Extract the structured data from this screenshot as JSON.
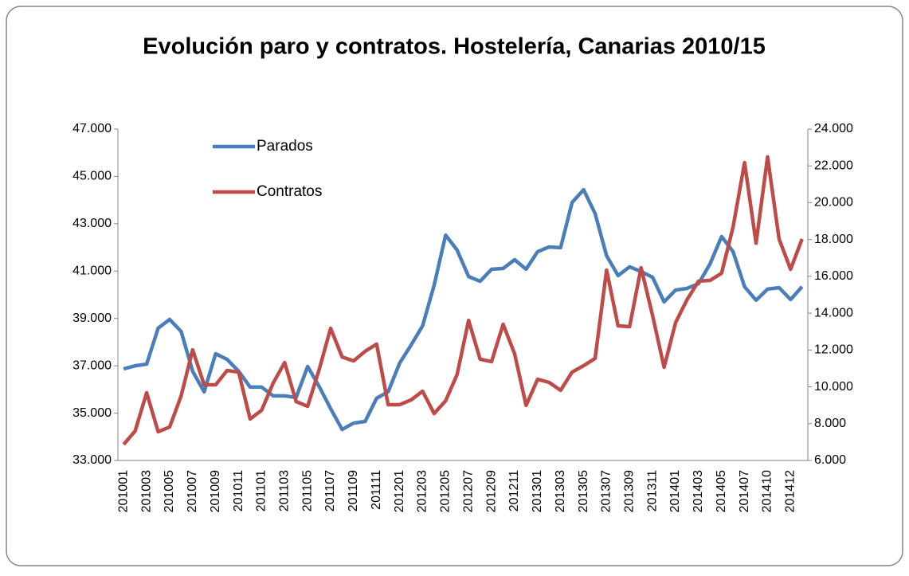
{
  "chart_data": {
    "type": "line",
    "title": "Evolución paro y contratos. Hostelería, Canarias 2010/15",
    "categories": [
      "201001",
      null,
      "201003",
      null,
      "201005",
      null,
      "201007",
      null,
      "201009",
      null,
      "201011",
      null,
      "201101",
      null,
      "201103",
      null,
      "201105",
      null,
      "201107",
      null,
      "201109",
      null,
      "201111",
      null,
      "201201",
      null,
      "201203",
      null,
      "201205",
      null,
      "201207",
      null,
      "201209",
      null,
      "201211",
      null,
      "201301",
      null,
      "201303",
      null,
      "201305",
      null,
      "201307",
      null,
      "201309",
      null,
      "201311",
      null,
      "201401",
      null,
      "201403",
      null,
      "201405",
      null,
      "201407",
      null,
      "201410",
      null,
      "201412",
      null
    ],
    "series": [
      {
        "name": "Parados",
        "color": "#4a7ebb",
        "values": [
          36870,
          37000,
          37070,
          38590,
          38960,
          38450,
          36770,
          35900,
          37510,
          37270,
          36770,
          36100,
          36100,
          35730,
          35730,
          35660,
          36970,
          36130,
          35190,
          34310,
          34580,
          34650,
          35630,
          35900,
          37110,
          37880,
          38690,
          40400,
          42520,
          41890,
          40770,
          40570,
          41080,
          41110,
          41480,
          41080,
          41820,
          42020,
          41990,
          43900,
          44440,
          43430,
          41650,
          40810,
          41180,
          40980,
          40740,
          39700,
          40200,
          40270,
          40470,
          41310,
          42460,
          41820,
          40340,
          39770,
          40240,
          40300,
          39800,
          40340
        ]
      },
      {
        "name": "Contratos",
        "color": "#be4b48",
        "axis": "y2",
        "values": [
          6870,
          7600,
          9680,
          7560,
          7820,
          9510,
          12010,
          10110,
          10110,
          10890,
          10800,
          8250,
          8730,
          10200,
          11320,
          9200,
          8940,
          10930,
          13180,
          11620,
          11410,
          11930,
          12320,
          9030,
          9030,
          9290,
          9760,
          8550,
          9240,
          10670,
          13610,
          11500,
          11370,
          13400,
          11800,
          8990,
          10410,
          10240,
          9810,
          10800,
          11150,
          11540,
          16340,
          13310,
          13270,
          16470,
          13870,
          11060,
          13490,
          14740,
          15740,
          15780,
          16170,
          18680,
          22180,
          17800,
          22490,
          18030,
          16380,
          18030
        ]
      }
    ],
    "ylim": [
      33000,
      47000
    ],
    "yticks": [
      {
        "value": 33000,
        "label": "33.000"
      },
      {
        "value": 35000,
        "label": "35.000"
      },
      {
        "value": 37000,
        "label": "37.000"
      },
      {
        "value": 39000,
        "label": "39.000"
      },
      {
        "value": 41000,
        "label": "41.000"
      },
      {
        "value": 43000,
        "label": "43.000"
      },
      {
        "value": 45000,
        "label": "45.000"
      },
      {
        "value": 47000,
        "label": "47.000"
      }
    ],
    "y2lim": [
      6000,
      24000
    ],
    "y2ticks": [
      {
        "value": 6000,
        "label": "6.000"
      },
      {
        "value": 8000,
        "label": "8.000"
      },
      {
        "value": 10000,
        "label": "10.000"
      },
      {
        "value": 12000,
        "label": "12.000"
      },
      {
        "value": 14000,
        "label": "14.000"
      },
      {
        "value": 16000,
        "label": "16.000"
      },
      {
        "value": 18000,
        "label": "18.000"
      },
      {
        "value": 20000,
        "label": "20.000"
      },
      {
        "value": 22000,
        "label": "22.000"
      },
      {
        "value": 24000,
        "label": "24.000"
      }
    ],
    "legend": "top-left"
  }
}
